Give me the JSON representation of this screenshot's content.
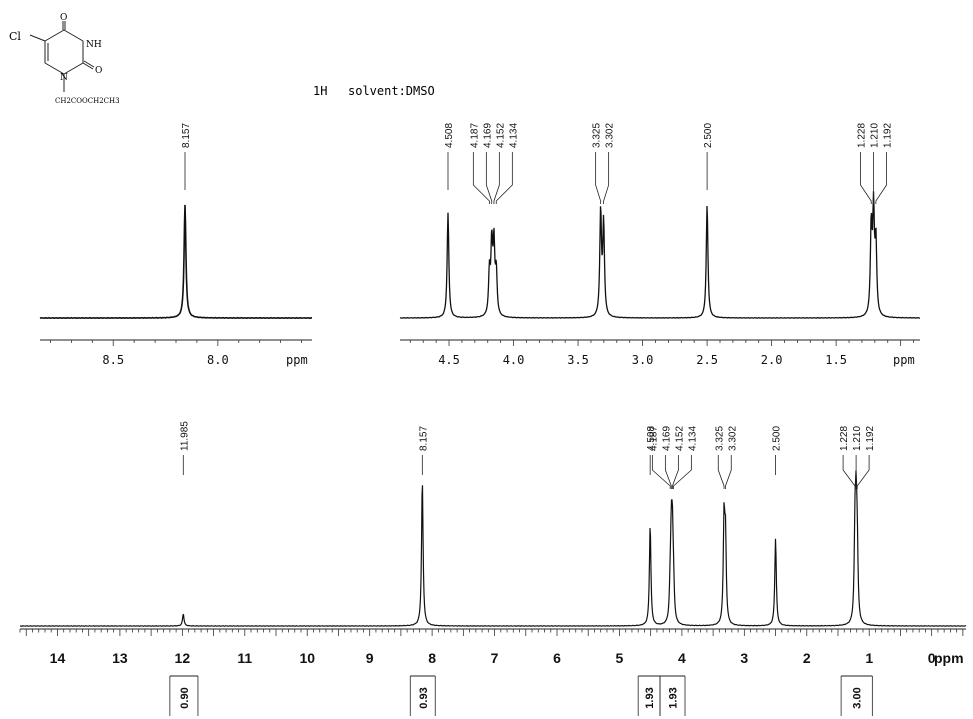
{
  "header": {
    "nucleus": "1H",
    "solvent": "solvent:DMSO"
  },
  "structure": {
    "substituent_left": "Cl",
    "ring_atoms": [
      "O",
      "NH",
      "N",
      "O"
    ],
    "side_chain": "CH2COOCH2CH3"
  },
  "chart_data": [
    {
      "id": "inset-left",
      "type": "line",
      "x_unit": "ppm",
      "xlim": [
        8.85,
        7.55
      ],
      "x_ticks": [
        "8.5",
        "8.0"
      ],
      "peaks": [
        {
          "shift": 8.157,
          "height": 1.0,
          "label": "8.157"
        }
      ]
    },
    {
      "id": "inset-right",
      "type": "line",
      "x_unit": "ppm",
      "xlim": [
        4.88,
        0.85
      ],
      "x_ticks": [
        "4.5",
        "4.0",
        "3.5",
        "3.0",
        "2.5",
        "2.0",
        "1.5"
      ],
      "peaks": [
        {
          "shift": 4.508,
          "height": 0.93,
          "label": "4.508"
        },
        {
          "shift": 4.187,
          "height": 0.38,
          "label": "4.187"
        },
        {
          "shift": 4.169,
          "height": 0.62,
          "label": "4.169"
        },
        {
          "shift": 4.152,
          "height": 0.62,
          "label": "4.152"
        },
        {
          "shift": 4.134,
          "height": 0.38,
          "label": "4.134"
        },
        {
          "shift": 3.325,
          "height": 0.93,
          "label": "3.325"
        },
        {
          "shift": 3.302,
          "height": 0.82,
          "label": "3.302"
        },
        {
          "shift": 2.5,
          "height": 1.0,
          "label": "2.500"
        },
        {
          "shift": 1.228,
          "height": 0.78,
          "label": "1.228"
        },
        {
          "shift": 1.21,
          "height": 0.9,
          "label": "1.210"
        },
        {
          "shift": 1.192,
          "height": 0.64,
          "label": "1.192"
        }
      ]
    },
    {
      "id": "main",
      "type": "line",
      "x_unit": "ppm",
      "xlim": [
        14.6,
        -0.55
      ],
      "x_ticks": [
        "14",
        "13",
        "12",
        "11",
        "10",
        "9",
        "8",
        "7",
        "6",
        "5",
        "4",
        "3",
        "2",
        "1",
        "0"
      ],
      "peaks": [
        {
          "shift": 11.985,
          "height": 0.08,
          "label": "11.985"
        },
        {
          "shift": 8.157,
          "height": 0.97,
          "label": "8.157"
        },
        {
          "shift": 4.508,
          "height": 0.67,
          "label": "4.508"
        },
        {
          "shift": 4.187,
          "height": 0.2,
          "label": "4.187"
        },
        {
          "shift": 4.169,
          "height": 0.5,
          "label": "4.169"
        },
        {
          "shift": 4.152,
          "height": 0.5,
          "label": "4.152"
        },
        {
          "shift": 4.134,
          "height": 0.2,
          "label": "4.134"
        },
        {
          "shift": 3.325,
          "height": 0.67,
          "label": "3.325"
        },
        {
          "shift": 3.302,
          "height": 0.55,
          "label": "3.302"
        },
        {
          "shift": 2.5,
          "height": 0.58,
          "label": "2.500"
        },
        {
          "shift": 1.228,
          "height": 0.55,
          "label": "1.228"
        },
        {
          "shift": 1.21,
          "height": 0.64,
          "label": "1.210"
        },
        {
          "shift": 1.192,
          "height": 0.45,
          "label": "1.192"
        }
      ],
      "integrals": [
        {
          "from": 12.2,
          "to": 11.75,
          "value": "0.90"
        },
        {
          "from": 8.35,
          "to": 7.95,
          "value": "0.93"
        },
        {
          "from": 4.7,
          "to": 4.35,
          "value": "1.93"
        },
        {
          "from": 4.35,
          "to": 3.95,
          "value": "1.93"
        },
        {
          "from": 1.45,
          "to": 0.95,
          "value": "3.00"
        }
      ]
    }
  ]
}
